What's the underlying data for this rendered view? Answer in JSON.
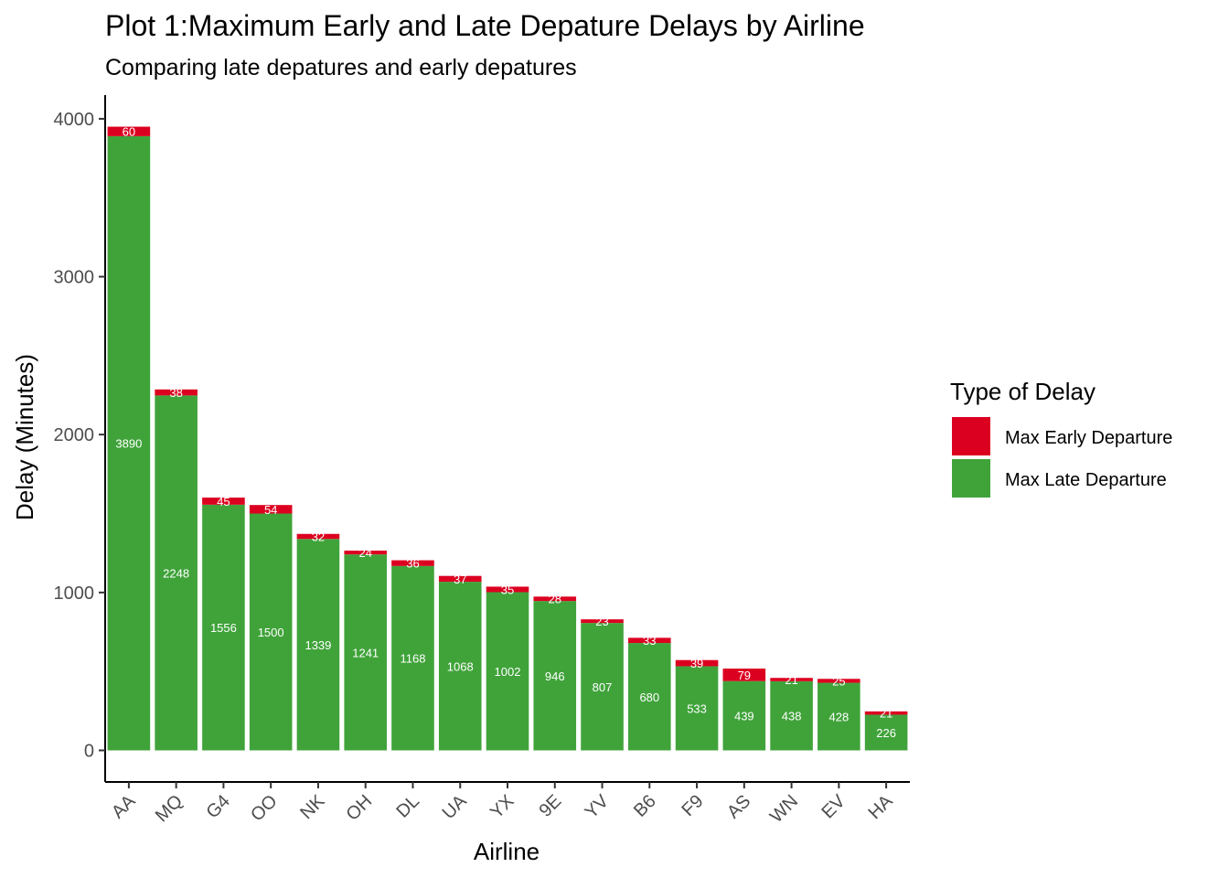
{
  "colors": {
    "early": "#dc0020",
    "late": "#40a33a"
  },
  "chart_data": {
    "type": "bar",
    "stacked": true,
    "title": "Plot 1:Maximum Early and Late Depature Delays by Airline",
    "subtitle": "Comparing late depatures and early depatures",
    "xlabel": "Airline",
    "ylabel": "Delay (Minutes)",
    "ylim": [
      -200,
      4150
    ],
    "yticks": [
      0,
      1000,
      2000,
      3000,
      4000
    ],
    "yticklabels": [
      "0",
      "1000",
      "2000",
      "3000",
      "4000"
    ],
    "categories": [
      "AA",
      "MQ",
      "G4",
      "OO",
      "NK",
      "OH",
      "DL",
      "UA",
      "YX",
      "9E",
      "YV",
      "B6",
      "F9",
      "AS",
      "WN",
      "EV",
      "HA"
    ],
    "series": [
      {
        "name": "Max Late Departure",
        "values": [
          3890,
          2248,
          1556,
          1500,
          1339,
          1241,
          1168,
          1068,
          1002,
          946,
          807,
          680,
          533,
          439,
          438,
          428,
          226
        ]
      },
      {
        "name": "Max Early Departure",
        "values": [
          60,
          38,
          45,
          54,
          32,
          24,
          36,
          37,
          35,
          28,
          23,
          33,
          39,
          79,
          21,
          25,
          21
        ]
      }
    ],
    "legend": {
      "title": "Type of Delay",
      "position": "right",
      "entries": [
        "Max Early Departure",
        "Max Late Departure"
      ]
    },
    "grid": false
  }
}
